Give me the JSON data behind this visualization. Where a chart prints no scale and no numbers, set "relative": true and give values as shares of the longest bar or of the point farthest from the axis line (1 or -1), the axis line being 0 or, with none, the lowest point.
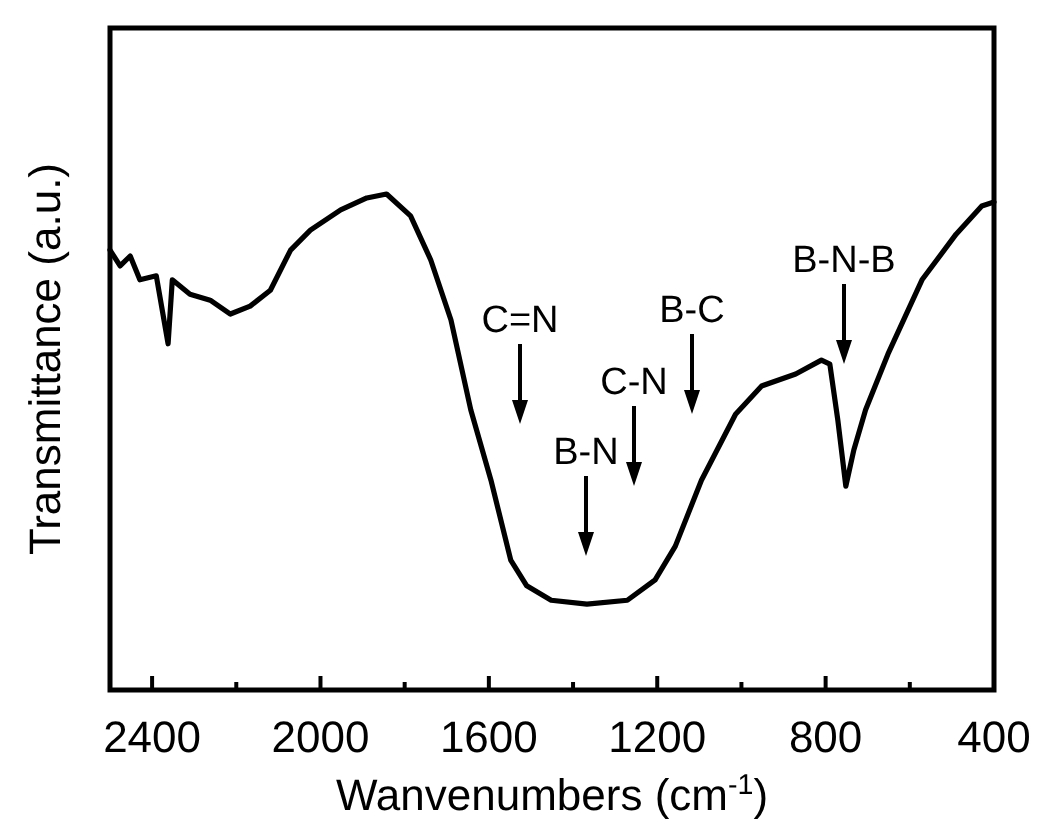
{
  "chart_data": {
    "type": "line",
    "relative": true,
    "xlabel": "Wanvenumbers (cm$^{-1}$)",
    "ylabel": "Transmittance (a.u.)",
    "xlim": [
      2500,
      400
    ],
    "xticks": [
      2400,
      {
        "value": 2200,
        "label": null
      },
      2000,
      {
        "value": 1800,
        "label": null
      },
      1600,
      {
        "value": 1400,
        "label": null
      },
      1200,
      {
        "value": 1000,
        "label": null
      },
      800,
      {
        "value": 600,
        "label": null
      },
      400
    ],
    "series": [
      {
        "color": "#000000",
        "x": [
          2500,
          2476,
          2452,
          2429,
          2390,
          2362,
          2352,
          2310,
          2262,
          2214,
          2167,
          2119,
          2071,
          2024,
          1952,
          1890,
          1843,
          1786,
          1738,
          1690,
          1643,
          1595,
          1548,
          1510,
          1452,
          1367,
          1271,
          1205,
          1157,
          1095,
          1014,
          952,
          871,
          810,
          790,
          771,
          752,
          733,
          705,
          652,
          571,
          490,
          429,
          400
        ],
        "values": [
          0.887,
          0.855,
          0.875,
          0.827,
          0.835,
          0.698,
          0.827,
          0.798,
          0.786,
          0.758,
          0.774,
          0.806,
          0.887,
          0.927,
          0.968,
          0.992,
          1.0,
          0.956,
          0.867,
          0.746,
          0.565,
          0.423,
          0.262,
          0.21,
          0.181,
          0.173,
          0.181,
          0.222,
          0.29,
          0.423,
          0.556,
          0.613,
          0.637,
          0.665,
          0.657,
          0.544,
          0.411,
          0.484,
          0.565,
          0.677,
          0.827,
          0.919,
          0.976,
          0.984
        ]
      }
    ],
    "annotations": [
      "C=N",
      "B-N",
      "C-N",
      "B-C",
      "B-N-B"
    ],
    "grid": false,
    "line_style": "solid"
  }
}
